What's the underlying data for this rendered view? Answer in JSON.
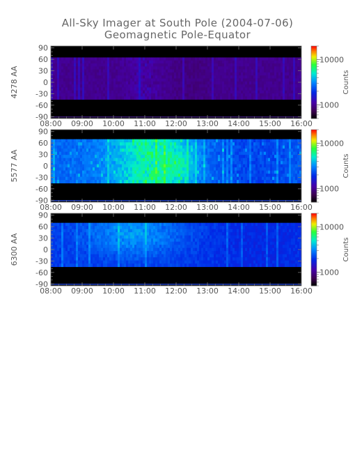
{
  "title": "All-Sky Imager at South Pole (2004-07-06)",
  "subtitle": "Geomagnetic Pole-Equator",
  "chart_data": [
    {
      "type": "heatmap",
      "ylabel": "4278 AA",
      "x_ticks": [
        "08:00",
        "09:00",
        "10:00",
        "11:00",
        "12:00",
        "13:00",
        "14:00",
        "15:00",
        "16:00"
      ],
      "y_ticks": [
        90,
        60,
        30,
        0,
        -30,
        -60,
        -90
      ],
      "ylim": [
        -95,
        95
      ],
      "data_band": [
        -45,
        65
      ],
      "colorbar": {
        "label": "Counts",
        "ticks": [
          1000,
          10000
        ],
        "scale": "log",
        "range": [
          500,
          20000
        ]
      },
      "typical_level": "low (~700 counts)"
    },
    {
      "type": "heatmap",
      "ylabel": "5577 AA",
      "x_ticks": [
        "08:00",
        "09:00",
        "10:00",
        "11:00",
        "12:00",
        "13:00",
        "14:00",
        "15:00",
        "16:00"
      ],
      "y_ticks": [
        90,
        60,
        30,
        0,
        -30,
        -60,
        -90
      ],
      "ylim": [
        -95,
        95
      ],
      "data_band": [
        -45,
        70
      ],
      "colorbar": {
        "label": "Counts",
        "ticks": [
          1000,
          10000
        ],
        "scale": "log",
        "range": [
          500,
          20000
        ]
      },
      "typical_level": "high, peak near 11:00-11:40"
    },
    {
      "type": "heatmap",
      "ylabel": "6300 AA",
      "x_ticks": [
        "08:00",
        "09:00",
        "10:00",
        "11:00",
        "12:00",
        "13:00",
        "14:00",
        "15:00",
        "16:00"
      ],
      "y_ticks": [
        90,
        60,
        30,
        0,
        -30,
        -60,
        -90
      ],
      "ylim": [
        -95,
        95
      ],
      "data_band": [
        -45,
        70
      ],
      "colorbar": {
        "label": "Counts",
        "ticks": [
          1000,
          10000
        ],
        "scale": "log",
        "range": [
          500,
          20000
        ]
      },
      "typical_level": "moderate, peak near 10:00-12:00"
    }
  ]
}
